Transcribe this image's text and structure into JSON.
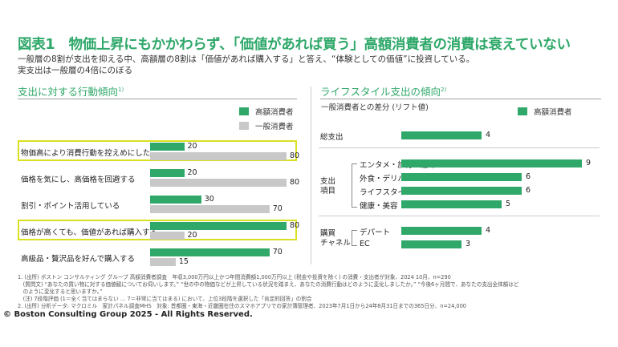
{
  "title": "図表1　物価上昇にもかかわらず、「価値があれば買う」高額消費者の消費は衰えていない",
  "subtitle_line1": "一般層の8割が支出を抑える中、高額層の8割は「価値があれば購入する」と答え、“体験としての価値”に投資している。",
  "subtitle_line2": "実支出は一般層の4倍にのぼる",
  "left_section": {
    "title": "支出に対する行動傾向",
    "note": "1)"
  },
  "right_section": {
    "title": "ライフスタイル支出の傾向",
    "note": "2)",
    "subtitle": "一般消費者との差分 (リフト値)"
  },
  "colors": {
    "high": "#2fa86a",
    "general": "#c8c8c8",
    "highlight": "#d9e021",
    "accent": "#2fa86a"
  },
  "chart_data": [
    {
      "type": "bar",
      "orientation": "horizontal",
      "title": "支出に対する行動傾向",
      "categories": [
        "物価高により消費行動を控えめにした",
        "価格を気にし、高価格を回避する",
        "割引・ポイント活用している",
        "価格が高くても、価値があれば購入する",
        "高級品・贅沢品を好んで購入する"
      ],
      "highlighted": [
        0,
        3
      ],
      "series": [
        {
          "name": "高額消費者",
          "color": "#2fa86a",
          "values": [
            20,
            20,
            30,
            80,
            70
          ]
        },
        {
          "name": "一般消費者",
          "color": "#c8c8c8",
          "values": [
            80,
            80,
            70,
            20,
            15
          ]
        }
      ]
    },
    {
      "type": "bar",
      "orientation": "horizontal",
      "title": "ライフスタイル支出の傾向",
      "ylabel": "一般消費者との差分 (リフト値)",
      "series_name": "高額消費者",
      "groups": [
        {
          "label": "",
          "items": [
            {
              "label": "総支出",
              "value": 4
            }
          ]
        },
        {
          "label": "支出\n項目",
          "items": [
            {
              "label": "エンタメ・旅行・趣味",
              "value": 9
            },
            {
              "label": "外食・デリバリー",
              "value": 6
            },
            {
              "label": "ライフスタイル",
              "value": 6
            },
            {
              "label": "健康・美容",
              "value": 5
            }
          ]
        },
        {
          "label": "購買\nチャネル",
          "items": [
            {
              "label": "デパート",
              "value": 4
            },
            {
              "label": "EC",
              "value": 3
            }
          ]
        }
      ]
    }
  ],
  "footnotes": [
    "1. (出所) ボストン コンサルティング グループ 高額消費者調査　年収3,000万円以上かつ年間消費額1,000万円以上 (税金や投資を除く) の消費・支出者が対象、2024 10月、n=290",
    "　(質問文) “あなたの買い物に対する価値観についてお伺いします。” “世の中の物価などが上昇している状況を踏まえ、あなたの消費行動はどのように変化しましたか。” “今後6ヶ月間で、あなたの支出全体額はど",
    "　のように変化すると思いますか。”",
    "　(注) 7段階評価 (1＝全く当てはまらない … 7＝非常に当てはまる) において、上位3段階を選択した「肯定的回答」の割合",
    "2. (出所) 分析データ: マクロミル　家計パネル調査MHS　対象: 首都圏・東海・近畿圏在住のスマホアプリでの家計簿管理者、2023年7月1日から24年8月31日までの365日分、n=24,000"
  ],
  "copyright": "© Boston Consulting Group 2025 - All Rights Reserved."
}
